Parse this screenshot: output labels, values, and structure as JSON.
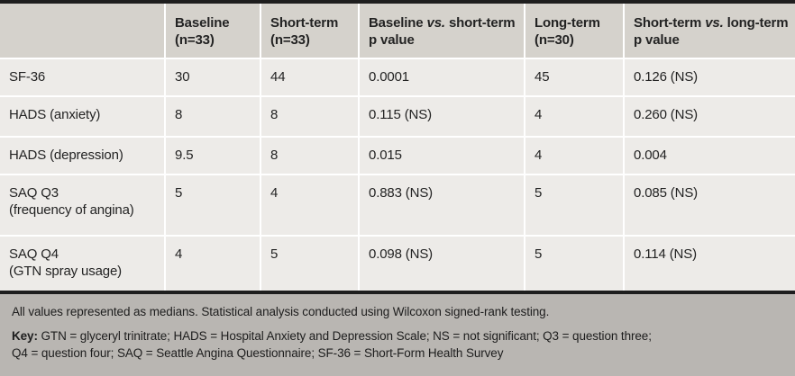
{
  "table": {
    "header": [
      {
        "parts": [
          {
            "text": ""
          }
        ]
      },
      {
        "parts": [
          {
            "text": "Baseline (n=33)"
          }
        ]
      },
      {
        "parts": [
          {
            "text": "Short-term (n=33)"
          }
        ]
      },
      {
        "parts": [
          {
            "text": "Baseline "
          },
          {
            "text": "vs.",
            "italic": true
          },
          {
            "text": " short-term p value"
          }
        ]
      },
      {
        "parts": [
          {
            "text": "Long-term (n=30)"
          }
        ]
      },
      {
        "parts": [
          {
            "text": "Short-term "
          },
          {
            "text": "vs.",
            "italic": true
          },
          {
            "text": " long-term p value"
          }
        ]
      }
    ],
    "rows": [
      {
        "label_lines": [
          "SF-36"
        ],
        "values": [
          "30",
          "44",
          "0.0001",
          "45",
          "0.126 (NS)"
        ]
      },
      {
        "label_lines": [
          "HADS (anxiety)"
        ],
        "values": [
          "8",
          "8",
          "0.115 (NS)",
          "4",
          "0.260 (NS)"
        ]
      },
      {
        "label_lines": [
          "HADS (depression)"
        ],
        "values": [
          "9.5",
          "8",
          "0.015",
          "4",
          "0.004"
        ]
      },
      {
        "label_lines": [
          "SAQ Q3",
          "(frequency of angina)"
        ],
        "values": [
          "5",
          "4",
          "0.883 (NS)",
          "5",
          "0.085 (NS)"
        ]
      },
      {
        "label_lines": [
          "SAQ Q4",
          "(GTN spray usage)"
        ],
        "values": [
          "4",
          "5",
          "0.098 (NS)",
          "5",
          "0.114 (NS)"
        ]
      }
    ]
  },
  "footnotes": {
    "note1": "All values represented as medians. Statistical analysis conducted using Wilcoxon signed-rank testing.",
    "key_label": "Key: ",
    "key_lines": [
      "GTN = glyceryl trinitrate; HADS = Hospital Anxiety and Depression Scale; NS = not significant; Q3 = question three;",
      "Q4 = question four; SAQ = Seattle Angina Questionnaire; SF-36 = Short-Form Health Survey"
    ]
  },
  "colors": {
    "header_bg": "#d5d2cc",
    "body_bg": "#edebe8",
    "footer_bg": "#b9b6b2",
    "rule": "#1e1e1e",
    "text": "#232323",
    "separator": "#ffffff"
  }
}
